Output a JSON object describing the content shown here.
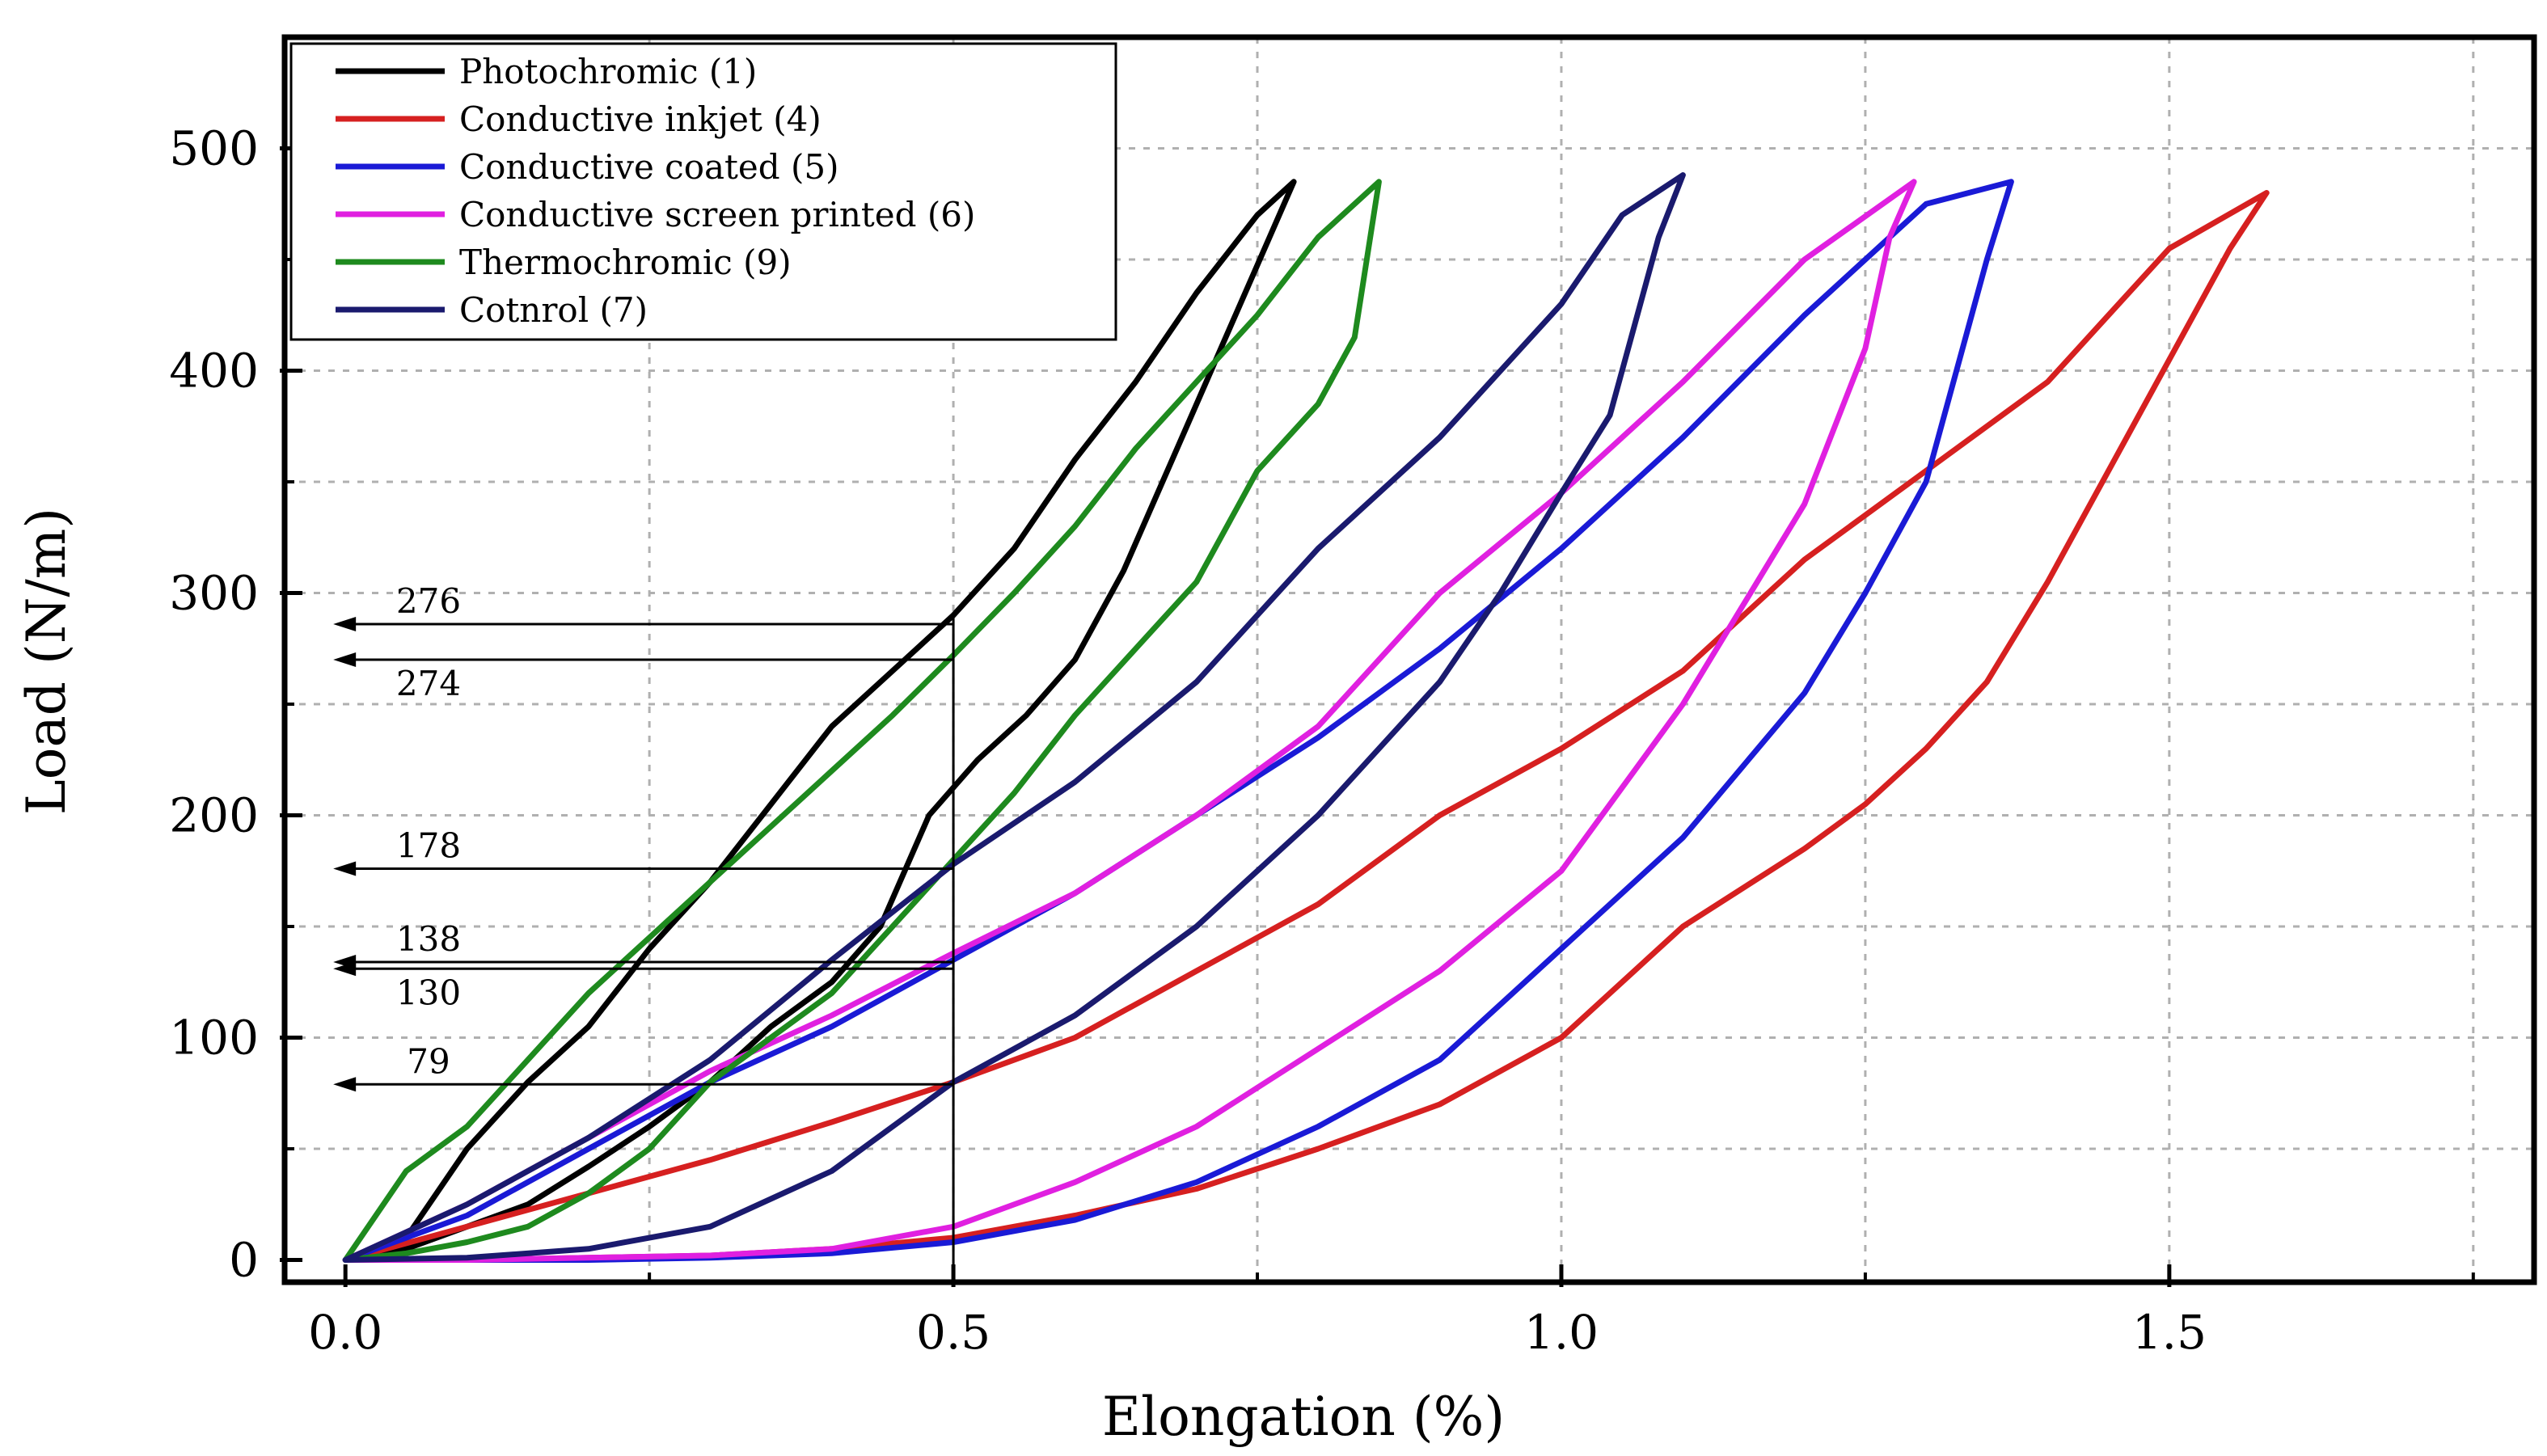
{
  "chart_data": {
    "type": "line",
    "title": "",
    "xlabel": "Elongation (%)",
    "ylabel": "Load (N/m)",
    "xlim": [
      -0.05,
      1.8
    ],
    "ylim": [
      -10,
      550
    ],
    "xticks": [
      0.0,
      0.5,
      1.0,
      1.5
    ],
    "xtick_labels": [
      "0.0",
      "0.5",
      "1.0",
      "1.5"
    ],
    "yticks": [
      0,
      100,
      200,
      300,
      400,
      500
    ],
    "ytick_labels": [
      "0",
      "100",
      "200",
      "300",
      "400",
      "500"
    ],
    "grid": true,
    "legend_position": "top-left",
    "series": [
      {
        "name": "Photochromic  (1)",
        "color": "#000000",
        "x": [
          0,
          0.05,
          0.1,
          0.15,
          0.2,
          0.25,
          0.3,
          0.35,
          0.4,
          0.45,
          0.5,
          0.55,
          0.6,
          0.65,
          0.7,
          0.75,
          0.78,
          0.76,
          0.72,
          0.68,
          0.64,
          0.6,
          0.56,
          0.52,
          0.48,
          0.44,
          0.4,
          0.35,
          0.3,
          0.25,
          0.2,
          0.15,
          0.1,
          0.05,
          0
        ],
        "y": [
          0,
          10,
          50,
          80,
          105,
          140,
          170,
          205,
          240,
          265,
          290,
          320,
          360,
          395,
          435,
          470,
          485,
          460,
          410,
          360,
          310,
          270,
          245,
          225,
          200,
          150,
          125,
          105,
          80,
          60,
          42,
          25,
          15,
          5,
          0
        ]
      },
      {
        "name": "Conductive inkjet (4)",
        "color": "#d62020",
        "x": [
          0,
          0.1,
          0.2,
          0.3,
          0.4,
          0.5,
          0.6,
          0.7,
          0.8,
          0.9,
          1.0,
          1.1,
          1.2,
          1.3,
          1.4,
          1.5,
          1.58,
          1.55,
          1.5,
          1.45,
          1.4,
          1.35,
          1.3,
          1.25,
          1.2,
          1.1,
          1.0,
          0.9,
          0.8,
          0.7,
          0.6,
          0.5,
          0.4,
          0.3,
          0.2,
          0.1,
          0
        ],
        "y": [
          0,
          15,
          30,
          45,
          62,
          80,
          100,
          130,
          160,
          200,
          230,
          265,
          315,
          355,
          395,
          455,
          480,
          455,
          405,
          355,
          305,
          260,
          230,
          205,
          185,
          150,
          100,
          70,
          50,
          32,
          20,
          10,
          5,
          2,
          1,
          0,
          0
        ]
      },
      {
        "name": "Conductive coated (5)",
        "color": "#1a1ad6",
        "x": [
          0,
          0.1,
          0.2,
          0.3,
          0.4,
          0.5,
          0.6,
          0.7,
          0.8,
          0.9,
          1.0,
          1.1,
          1.2,
          1.3,
          1.37,
          1.35,
          1.3,
          1.25,
          1.2,
          1.1,
          1.0,
          0.9,
          0.8,
          0.7,
          0.6,
          0.5,
          0.4,
          0.3,
          0.2,
          0.1,
          0
        ],
        "y": [
          0,
          20,
          50,
          80,
          105,
          135,
          165,
          200,
          235,
          275,
          320,
          370,
          425,
          475,
          485,
          450,
          350,
          300,
          255,
          190,
          140,
          90,
          60,
          35,
          18,
          8,
          3,
          1,
          0,
          0,
          0
        ]
      },
      {
        "name": "Conductive screen printed (6)",
        "color": "#e020e0",
        "x": [
          0,
          0.1,
          0.2,
          0.3,
          0.4,
          0.5,
          0.6,
          0.7,
          0.8,
          0.9,
          1.0,
          1.1,
          1.2,
          1.29,
          1.27,
          1.25,
          1.2,
          1.1,
          1.0,
          0.9,
          0.8,
          0.7,
          0.6,
          0.5,
          0.4,
          0.3,
          0.2,
          0.1,
          0
        ],
        "y": [
          0,
          25,
          55,
          85,
          110,
          138,
          165,
          200,
          240,
          300,
          345,
          395,
          450,
          485,
          460,
          410,
          340,
          250,
          175,
          130,
          95,
          60,
          35,
          15,
          5,
          2,
          1,
          0,
          0
        ]
      },
      {
        "name": "Thermochromic (9)",
        "color": "#1e8a1e",
        "x": [
          0,
          0.05,
          0.1,
          0.15,
          0.2,
          0.25,
          0.3,
          0.35,
          0.4,
          0.45,
          0.5,
          0.55,
          0.6,
          0.65,
          0.7,
          0.75,
          0.8,
          0.85,
          0.83,
          0.8,
          0.75,
          0.7,
          0.65,
          0.6,
          0.55,
          0.5,
          0.45,
          0.4,
          0.35,
          0.3,
          0.25,
          0.2,
          0.15,
          0.1,
          0.05,
          0
        ],
        "y": [
          0,
          40,
          60,
          90,
          120,
          145,
          170,
          195,
          220,
          245,
          272,
          300,
          330,
          365,
          395,
          425,
          460,
          485,
          415,
          385,
          355,
          305,
          275,
          245,
          210,
          180,
          150,
          120,
          100,
          80,
          50,
          30,
          15,
          8,
          3,
          0
        ]
      },
      {
        "name": "Cotnrol (7)",
        "color": "#1a1a6e",
        "x": [
          0,
          0.1,
          0.2,
          0.3,
          0.4,
          0.5,
          0.6,
          0.7,
          0.8,
          0.9,
          1.0,
          1.05,
          1.1,
          1.08,
          1.04,
          1.0,
          0.95,
          0.9,
          0.8,
          0.7,
          0.6,
          0.5,
          0.4,
          0.3,
          0.2,
          0.1,
          0
        ],
        "y": [
          0,
          25,
          55,
          90,
          135,
          178,
          215,
          260,
          320,
          370,
          430,
          470,
          488,
          460,
          380,
          345,
          300,
          260,
          200,
          150,
          110,
          80,
          40,
          15,
          5,
          1,
          0
        ]
      }
    ],
    "annotations": [
      {
        "label": "276",
        "y": 286,
        "label_side": "above"
      },
      {
        "label": "274",
        "y": 270,
        "label_side": "below"
      },
      {
        "label": "178",
        "y": 176,
        "label_side": "above"
      },
      {
        "label": "138",
        "y": 134,
        "label_side": "above"
      },
      {
        "label": "130",
        "y": 131,
        "label_side": "below"
      },
      {
        "label": "79",
        "y": 79,
        "label_side": "above"
      }
    ],
    "reference_x": 0.5
  }
}
